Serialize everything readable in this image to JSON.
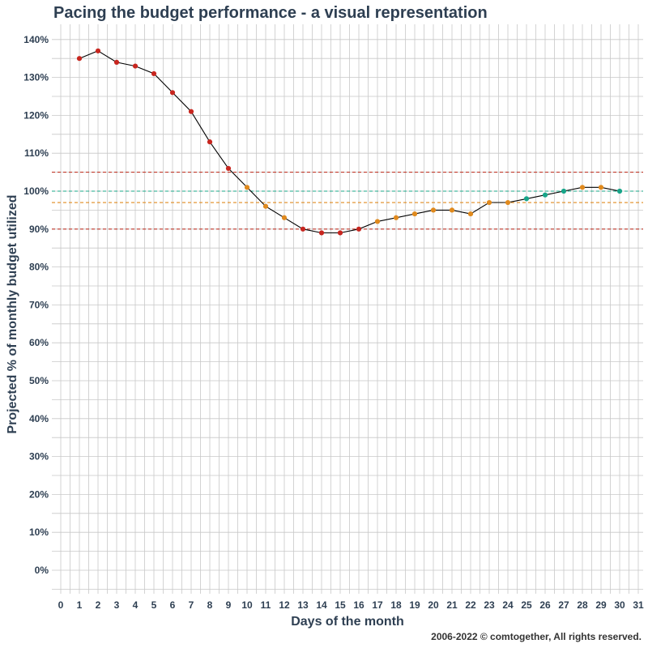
{
  "chart_data": {
    "type": "line",
    "title": "Pacing the budget performance - a visual representation",
    "xlabel": "Days of the month",
    "ylabel": "Projected % of monthly budget utilized",
    "xlim": [
      0,
      31
    ],
    "ylim": [
      0,
      140
    ],
    "x_ticks": [
      "0",
      "1",
      "2",
      "3",
      "4",
      "5",
      "6",
      "7",
      "8",
      "9",
      "10",
      "11",
      "12",
      "13",
      "14",
      "15",
      "16",
      "17",
      "18",
      "19",
      "20",
      "21",
      "22",
      "23",
      "24",
      "25",
      "26",
      "27",
      "28",
      "29",
      "30",
      "31"
    ],
    "y_ticks": [
      "0%",
      "10%",
      "20%",
      "30%",
      "40%",
      "50%",
      "60%",
      "70%",
      "80%",
      "90%",
      "100%",
      "110%",
      "120%",
      "130%",
      "140%"
    ],
    "grid": true,
    "series": [
      {
        "x": [
          1,
          2,
          3,
          4,
          5,
          6,
          7,
          8,
          9,
          10,
          11,
          12,
          13,
          14,
          15,
          16,
          17,
          18,
          19,
          20,
          21,
          22,
          23,
          24,
          25,
          26,
          27,
          28,
          29,
          30
        ],
        "values": [
          135,
          137,
          134,
          133,
          131,
          126,
          121,
          113,
          106,
          101,
          96,
          93,
          90,
          89,
          89,
          90,
          92,
          93,
          94,
          95,
          95,
          94,
          97,
          97,
          98,
          99,
          100,
          101,
          101,
          100
        ],
        "point_colors": [
          "red",
          "red",
          "red",
          "red",
          "red",
          "red",
          "red",
          "red",
          "red",
          "orange",
          "orange",
          "orange",
          "red",
          "red",
          "red",
          "red",
          "orange",
          "orange",
          "orange",
          "orange",
          "orange",
          "orange",
          "orange",
          "orange",
          "teal",
          "teal",
          "teal",
          "orange",
          "orange",
          "teal"
        ]
      }
    ],
    "reference_lines": [
      {
        "y": 105,
        "color": "#c0392b",
        "style": "dashed"
      },
      {
        "y": 100,
        "color": "#1aa88a",
        "style": "dashed"
      },
      {
        "y": 97,
        "color": "#e08a1e",
        "style": "dashed"
      },
      {
        "y": 90,
        "color": "#c0392b",
        "style": "dashed"
      }
    ],
    "colors": {
      "red": "#c8261f",
      "orange": "#e08a1e",
      "teal": "#17a589",
      "line": "#000000",
      "grid": "#c8c8c8",
      "text": "#2e3f52"
    }
  },
  "footer": {
    "copyright": "2006-2022 © comtogether, All rights reserved."
  }
}
